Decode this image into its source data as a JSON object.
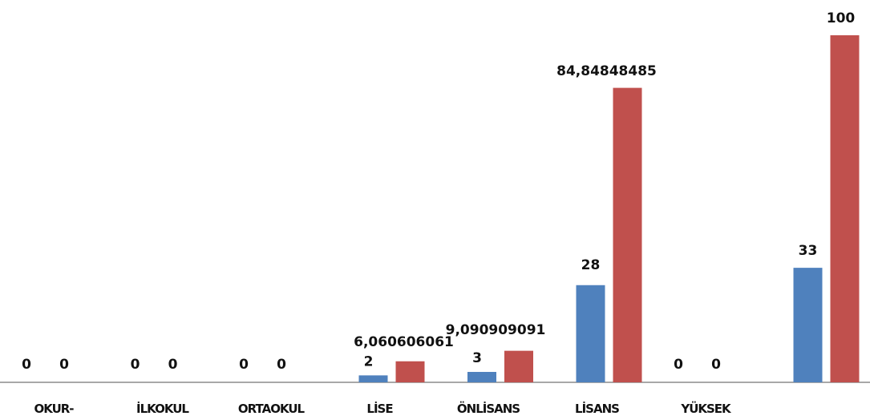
{
  "chart_data": {
    "type": "bar",
    "categories": [
      "OKUR-",
      "İLKOKUL",
      "ORTAOKUL",
      "LİSE",
      "ÖNLİSANS",
      "LİSANS",
      "YÜKSEK",
      ""
    ],
    "series": [
      {
        "values": [
          0,
          0,
          0,
          2,
          3,
          28,
          0,
          33
        ],
        "labels": [
          "0",
          "0",
          "0",
          "2",
          "3",
          "28",
          "0",
          "33"
        ],
        "color": "#4f81bd"
      },
      {
        "values": [
          0,
          0,
          0,
          6.060606061,
          9.090909091,
          84.84848485,
          0,
          100
        ],
        "labels": [
          "0",
          "0",
          "0",
          "6,060606061",
          "9,090909091",
          "84,84848485",
          "0",
          "100"
        ],
        "color": "#c0504d"
      }
    ],
    "ylim": [
      0,
      100
    ],
    "grid": false,
    "legend": "none"
  }
}
